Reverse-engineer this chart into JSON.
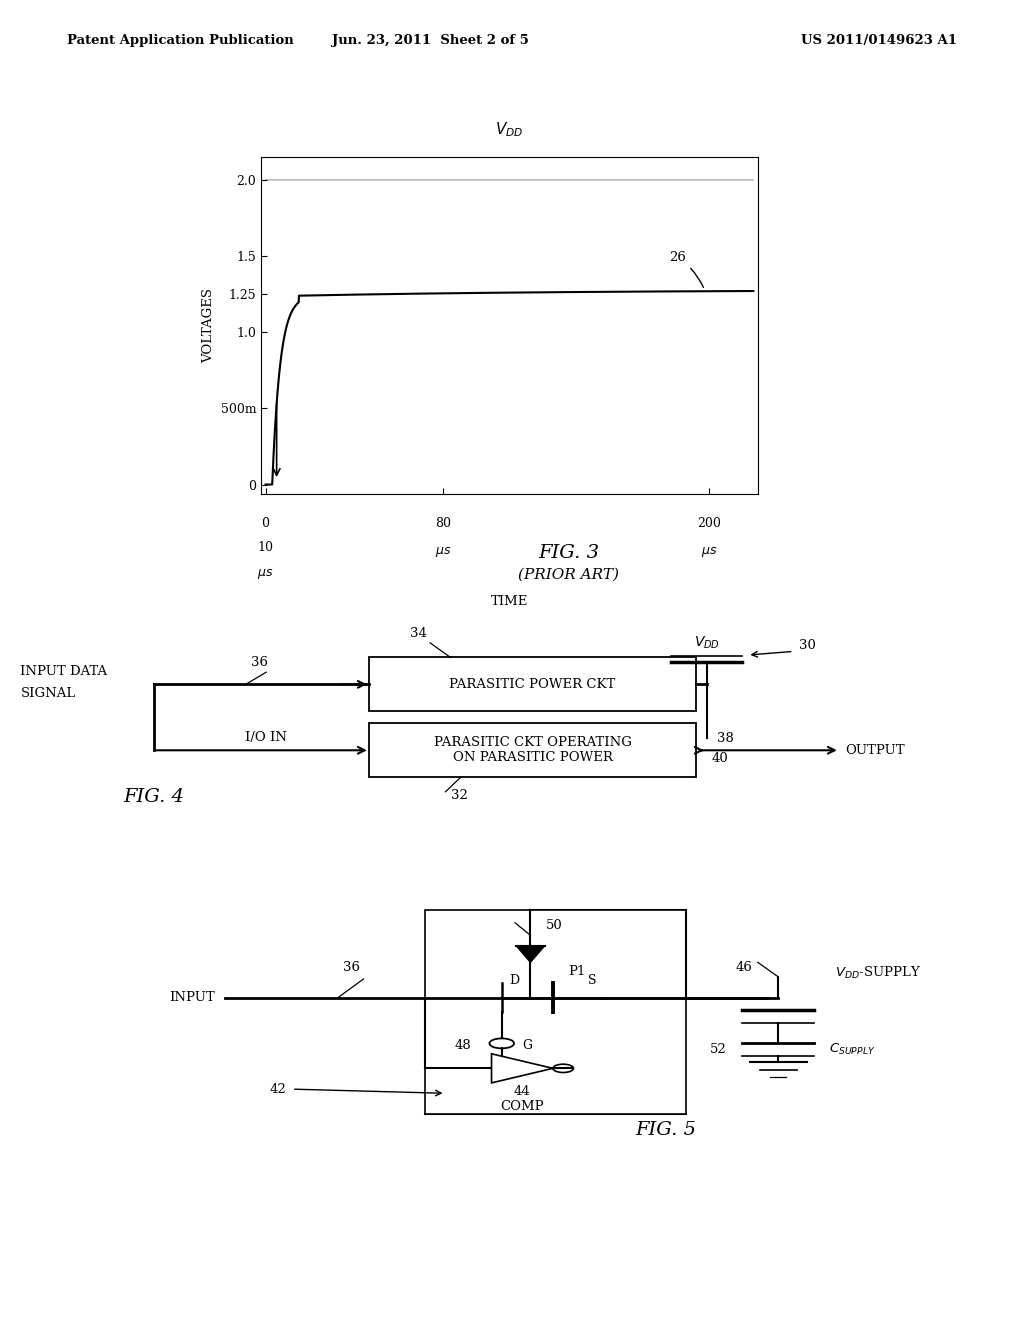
{
  "header_left": "Patent Application Publication",
  "header_mid": "Jun. 23, 2011  Sheet 2 of 5",
  "header_right": "US 2011/0149623 A1",
  "bg_color": "#ffffff"
}
